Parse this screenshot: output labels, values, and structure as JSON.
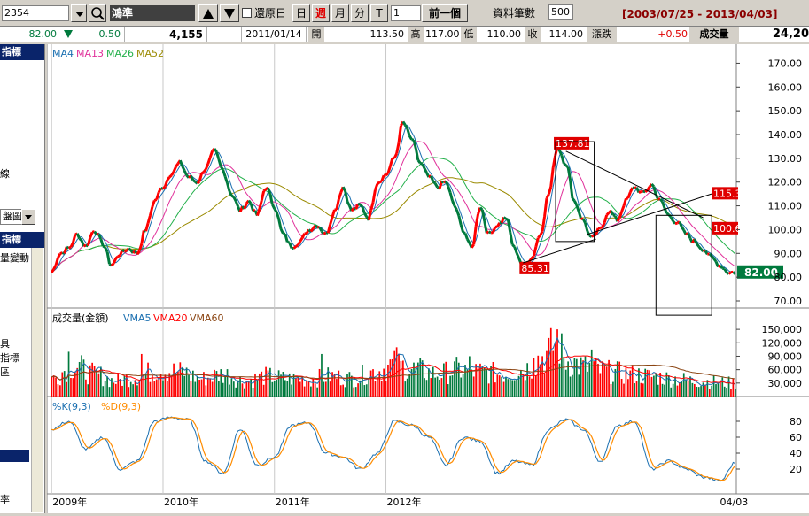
{
  "toolbar": {
    "stock_code": "2354",
    "stock_name": "鴻準",
    "restore_label": "還原日",
    "period_buttons": [
      "日",
      "週",
      "月",
      "分",
      "T"
    ],
    "active_period": "週",
    "period_count": "1",
    "prev_label": "前一個",
    "record_count_label": "資料筆數",
    "record_count": "500",
    "date_range": "[2003/07/25 - 2013/04/03]"
  },
  "quote": {
    "price": "82.00",
    "change": "0.50",
    "volume_top": "4,155",
    "date": "2011/01/14",
    "open_label": "開",
    "open": "113.50",
    "high_label": "高",
    "high": "117.00",
    "low_label": "低",
    "low": "110.00",
    "close_label": "收",
    "close": "114.00",
    "chg_label": "漲跌",
    "chg": "+0.50",
    "vol_label": "成交量",
    "vol": "24,20"
  },
  "sidebar": {
    "head1": "指標",
    "text_line": "線",
    "select_value": "盤圖",
    "head2": "指標",
    "item_vol_change": "量變動",
    "item_tool": "具",
    "item_indicator": "指標",
    "item_area": "區",
    "item_rate": "率"
  },
  "colors": {
    "up": "#ff0000",
    "down": "#007a3d",
    "ma4": "#1a6fb0",
    "ma13": "#e0309a",
    "ma26": "#22b04a",
    "ma52": "#9a8a00",
    "k": "#1a6fb0",
    "d": "#ff8c00"
  },
  "chart_data": [
    {
      "type": "line",
      "title": "",
      "legend": [
        "MA4",
        "MA13",
        "MA26",
        "MA52"
      ],
      "x_labels": [
        "2009年",
        "2010年",
        "2011年",
        "2012年",
        "04/03"
      ],
      "ylim": [
        70,
        175
      ],
      "y_ticks": [
        70,
        80,
        90,
        100,
        110,
        120,
        130,
        140,
        150,
        160,
        170
      ],
      "y_tick_labels": [
        "70.00",
        "80.00",
        "90.00",
        "100.00",
        "110.00",
        "120.00",
        "130.00",
        "140.00",
        "150.00",
        "160.00",
        "170.00"
      ],
      "price_anchors": [
        [
          0,
          82
        ],
        [
          4,
          90
        ],
        [
          8,
          92
        ],
        [
          12,
          98
        ],
        [
          16,
          93
        ],
        [
          20,
          100
        ],
        [
          24,
          94
        ],
        [
          28,
          85
        ],
        [
          32,
          90
        ],
        [
          36,
          92
        ],
        [
          40,
          90
        ],
        [
          44,
          100
        ],
        [
          48,
          112
        ],
        [
          52,
          118
        ],
        [
          56,
          124
        ],
        [
          60,
          128
        ],
        [
          64,
          122
        ],
        [
          68,
          120
        ],
        [
          72,
          126
        ],
        [
          76,
          133
        ],
        [
          80,
          125
        ],
        [
          84,
          115
        ],
        [
          88,
          108
        ],
        [
          92,
          112
        ],
        [
          96,
          106
        ],
        [
          100,
          118
        ],
        [
          104,
          110
        ],
        [
          108,
          98
        ],
        [
          112,
          93
        ],
        [
          116,
          95
        ],
        [
          120,
          100
        ],
        [
          124,
          102
        ],
        [
          128,
          98
        ],
        [
          132,
          108
        ],
        [
          136,
          118
        ],
        [
          140,
          108
        ],
        [
          144,
          110
        ],
        [
          148,
          105
        ],
        [
          152,
          120
        ],
        [
          156,
          123
        ],
        [
          160,
          130
        ],
        [
          164,
          145
        ],
        [
          168,
          138
        ],
        [
          172,
          128
        ],
        [
          176,
          122
        ],
        [
          180,
          118
        ],
        [
          184,
          120
        ],
        [
          188,
          110
        ],
        [
          192,
          100
        ],
        [
          196,
          92
        ],
        [
          200,
          110
        ],
        [
          204,
          98
        ],
        [
          208,
          102
        ],
        [
          212,
          105
        ],
        [
          216,
          92
        ],
        [
          220,
          85
        ],
        [
          224,
          88
        ],
        [
          228,
          98
        ],
        [
          232,
          115
        ],
        [
          236,
          135
        ],
        [
          240,
          128
        ],
        [
          244,
          112
        ],
        [
          248,
          104
        ],
        [
          252,
          96
        ],
        [
          256,
          100
        ],
        [
          260,
          108
        ],
        [
          264,
          104
        ],
        [
          268,
          112
        ],
        [
          272,
          118
        ],
        [
          276,
          115
        ],
        [
          280,
          119
        ],
        [
          284,
          112
        ],
        [
          288,
          106
        ],
        [
          292,
          103
        ],
        [
          296,
          98
        ],
        [
          300,
          95
        ],
        [
          304,
          92
        ],
        [
          308,
          88
        ],
        [
          312,
          85
        ],
        [
          316,
          82
        ],
        [
          319,
          82
        ]
      ],
      "weeks_total": 320,
      "x_label_weeks": [
        0,
        52,
        104,
        156,
        316
      ],
      "annotations": [
        {
          "text": "137.81",
          "week": 236,
          "value": 137.81
        },
        {
          "text": "85.31",
          "week": 220,
          "value": 85.31
        },
        {
          "text": "115.3",
          "value": 115.3
        },
        {
          "text": "100.6",
          "value": 100.6
        },
        {
          "text": "82.00",
          "value": 82.0
        }
      ]
    },
    {
      "type": "bar",
      "legend": [
        "成交量(金額)",
        "VMA5",
        "VMA20",
        "VMA60"
      ],
      "ylim": [
        0,
        170000
      ],
      "y_ticks": [
        30000,
        60000,
        90000,
        120000,
        150000
      ],
      "y_tick_labels": [
        "30,000",
        "60,000",
        "90,000",
        "120,000",
        "150,000"
      ],
      "vol_anchors": [
        [
          0,
          40000
        ],
        [
          10,
          70000
        ],
        [
          20,
          50000
        ],
        [
          30,
          35000
        ],
        [
          40,
          45000
        ],
        [
          50,
          60000
        ],
        [
          60,
          55000
        ],
        [
          70,
          40000
        ],
        [
          80,
          50000
        ],
        [
          90,
          35000
        ],
        [
          100,
          45000
        ],
        [
          110,
          40000
        ],
        [
          120,
          38000
        ],
        [
          130,
          45000
        ],
        [
          140,
          40000
        ],
        [
          150,
          55000
        ],
        [
          160,
          70000
        ],
        [
          170,
          60000
        ],
        [
          180,
          50000
        ],
        [
          190,
          60000
        ],
        [
          200,
          55000
        ],
        [
          210,
          50000
        ],
        [
          220,
          60000
        ],
        [
          230,
          90000
        ],
        [
          236,
          120000
        ],
        [
          240,
          80000
        ],
        [
          250,
          65000
        ],
        [
          260,
          55000
        ],
        [
          270,
          50000
        ],
        [
          280,
          45000
        ],
        [
          290,
          40000
        ],
        [
          300,
          35000
        ],
        [
          319,
          30000
        ]
      ],
      "spikes": [
        [
          236,
          150000
        ],
        [
          161,
          110000
        ],
        [
          126,
          95000
        ],
        [
          252,
          105000
        ],
        [
          8,
          100000
        ],
        [
          42,
          95000
        ],
        [
          195,
          90000
        ],
        [
          225,
          85000
        ]
      ]
    },
    {
      "type": "line",
      "legend": [
        "%K(9,3)",
        "%D(9,3)"
      ],
      "ylim": [
        0,
        100
      ],
      "y_ticks": [
        20,
        40,
        60,
        80
      ],
      "y_tick_labels": [
        "20",
        "40",
        "60",
        "80"
      ],
      "k_anchors": [
        [
          0,
          70
        ],
        [
          8,
          80
        ],
        [
          16,
          45
        ],
        [
          24,
          60
        ],
        [
          32,
          20
        ],
        [
          40,
          30
        ],
        [
          48,
          80
        ],
        [
          56,
          85
        ],
        [
          64,
          82
        ],
        [
          72,
          30
        ],
        [
          80,
          15
        ],
        [
          88,
          70
        ],
        [
          96,
          25
        ],
        [
          104,
          35
        ],
        [
          112,
          75
        ],
        [
          120,
          78
        ],
        [
          128,
          40
        ],
        [
          136,
          35
        ],
        [
          144,
          20
        ],
        [
          152,
          40
        ],
        [
          160,
          80
        ],
        [
          168,
          75
        ],
        [
          176,
          60
        ],
        [
          184,
          25
        ],
        [
          192,
          60
        ],
        [
          200,
          55
        ],
        [
          208,
          15
        ],
        [
          216,
          30
        ],
        [
          224,
          25
        ],
        [
          232,
          70
        ],
        [
          240,
          82
        ],
        [
          248,
          70
        ],
        [
          256,
          30
        ],
        [
          264,
          75
        ],
        [
          272,
          80
        ],
        [
          280,
          20
        ],
        [
          288,
          30
        ],
        [
          296,
          20
        ],
        [
          304,
          10
        ],
        [
          312,
          5
        ],
        [
          319,
          28
        ]
      ]
    }
  ]
}
